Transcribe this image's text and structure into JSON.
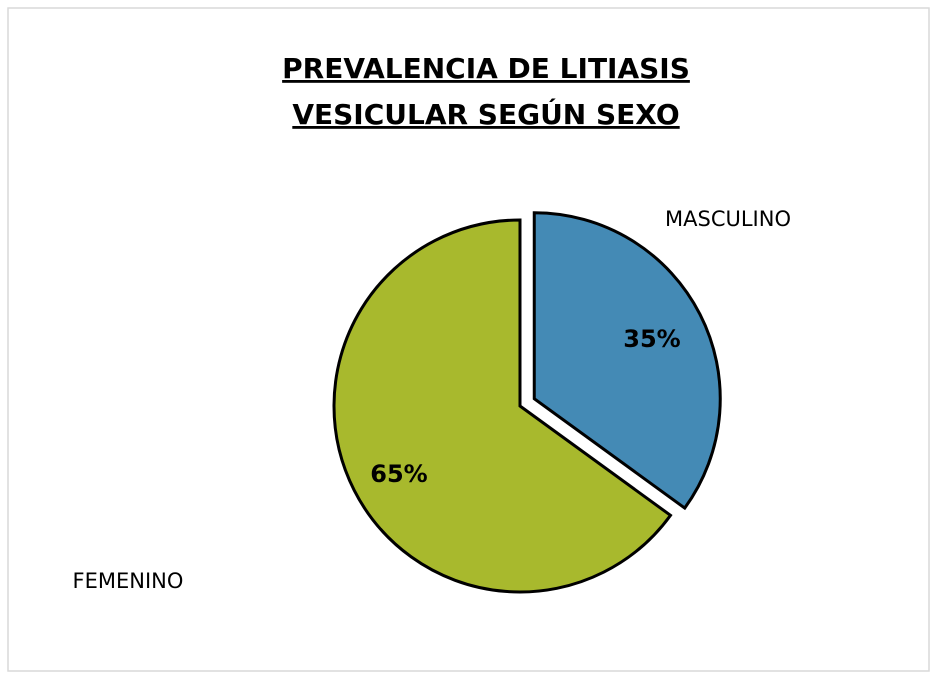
{
  "chart_data": {
    "type": "pie",
    "title": [
      "PREVALENCIA DE LITIASIS",
      "VESICULAR SEGÚN SEXO"
    ],
    "categories": [
      "MASCULINO",
      "FEMENINO"
    ],
    "values": [
      35,
      65
    ],
    "value_labels": [
      "35%",
      "65%"
    ],
    "colors": [
      "#448ab5",
      "#a8b92d"
    ]
  }
}
